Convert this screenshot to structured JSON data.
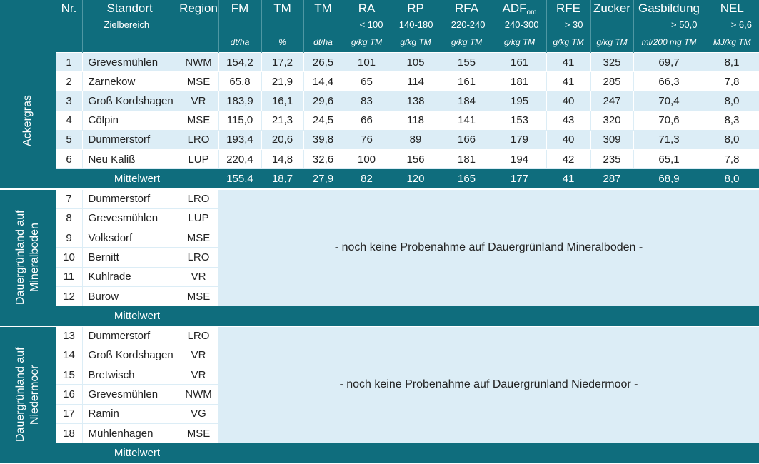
{
  "header": {
    "columns": [
      {
        "label": "Nr."
      },
      {
        "label": "Standort",
        "target": "Zielbereich"
      },
      {
        "label": "Region"
      },
      {
        "label": "FM",
        "unit": "dt/ha"
      },
      {
        "label": "TM",
        "unit": "%"
      },
      {
        "label": "TM",
        "unit": "dt/ha"
      },
      {
        "label": "RA",
        "target": "< 100",
        "unit": "g/kg TM"
      },
      {
        "label": "RP",
        "target": "140-180",
        "unit": "g/kg TM"
      },
      {
        "label": "RFA",
        "target": "220-240",
        "unit": "g/kg TM"
      },
      {
        "label": "ADF",
        "subscript": "om",
        "target": "240-300",
        "unit": "g/kg TM"
      },
      {
        "label": "RFE",
        "target": "> 30",
        "unit": "g/kg TM"
      },
      {
        "label": "Zucker",
        "unit": "g/kg TM"
      },
      {
        "label": "Gasbildung",
        "target": "> 50,0",
        "unit": "ml/200 mg TM"
      },
      {
        "label": "NEL",
        "target": "> 6,6",
        "unit": "MJ/kg TM"
      }
    ]
  },
  "groups": [
    {
      "label": "Ackergras",
      "rows": [
        [
          "1",
          "Grevesmühlen",
          "NWM",
          "154,2",
          "17,2",
          "26,5",
          "101",
          "105",
          "155",
          "161",
          "41",
          "325",
          "69,7",
          "8,1"
        ],
        [
          "2",
          "Zarnekow",
          "MSE",
          "65,8",
          "21,9",
          "14,4",
          "65",
          "114",
          "161",
          "181",
          "41",
          "285",
          "66,3",
          "7,8"
        ],
        [
          "3",
          "Groß Kordshagen",
          "VR",
          "183,9",
          "16,1",
          "29,6",
          "83",
          "138",
          "184",
          "195",
          "40",
          "247",
          "70,4",
          "8,0"
        ],
        [
          "4",
          "Cölpin",
          "MSE",
          "115,0",
          "21,3",
          "24,5",
          "66",
          "118",
          "141",
          "153",
          "43",
          "320",
          "70,6",
          "8,3"
        ],
        [
          "5",
          "Dummerstorf",
          "LRO",
          "193,4",
          "20,6",
          "39,8",
          "76",
          "89",
          "166",
          "179",
          "40",
          "309",
          "71,3",
          "8,0"
        ],
        [
          "6",
          "Neu Kaliß",
          "LUP",
          "220,4",
          "14,8",
          "32,6",
          "100",
          "156",
          "181",
          "194",
          "42",
          "235",
          "65,1",
          "7,8"
        ]
      ],
      "mean_label": "Mittelwert",
      "mean": [
        "155,4",
        "18,7",
        "27,9",
        "82",
        "120",
        "165",
        "177",
        "41",
        "287",
        "68,9",
        "8,0"
      ]
    },
    {
      "label": "Dauergrünland auf Mineralboden",
      "rows": [
        [
          "7",
          "Dummerstorf",
          "LRO"
        ],
        [
          "8",
          "Grevesmühlen",
          "LUP"
        ],
        [
          "9",
          "Volksdorf",
          "MSE"
        ],
        [
          "10",
          "Bernitt",
          "LRO"
        ],
        [
          "11",
          "Kuhlrade",
          "VR"
        ],
        [
          "12",
          "Burow",
          "MSE"
        ]
      ],
      "note": "- noch keine Probenahme auf Dauergrünland Mineralboden -",
      "mean_label": "Mittelwert"
    },
    {
      "label": "Dauergrünland auf Niedermoor",
      "rows": [
        [
          "13",
          "Dummerstorf",
          "LRO"
        ],
        [
          "14",
          "Groß Kordshagen",
          "VR"
        ],
        [
          "15",
          "Bretwisch",
          "VR"
        ],
        [
          "16",
          "Grevesmühlen",
          "NWM"
        ],
        [
          "17",
          "Ramin",
          "VG"
        ],
        [
          "18",
          "Mühlenhagen",
          "MSE"
        ]
      ],
      "note": "- noch keine Probenahme auf Dauergrünland Niedermoor -",
      "mean_label": "Mittelwert"
    }
  ]
}
